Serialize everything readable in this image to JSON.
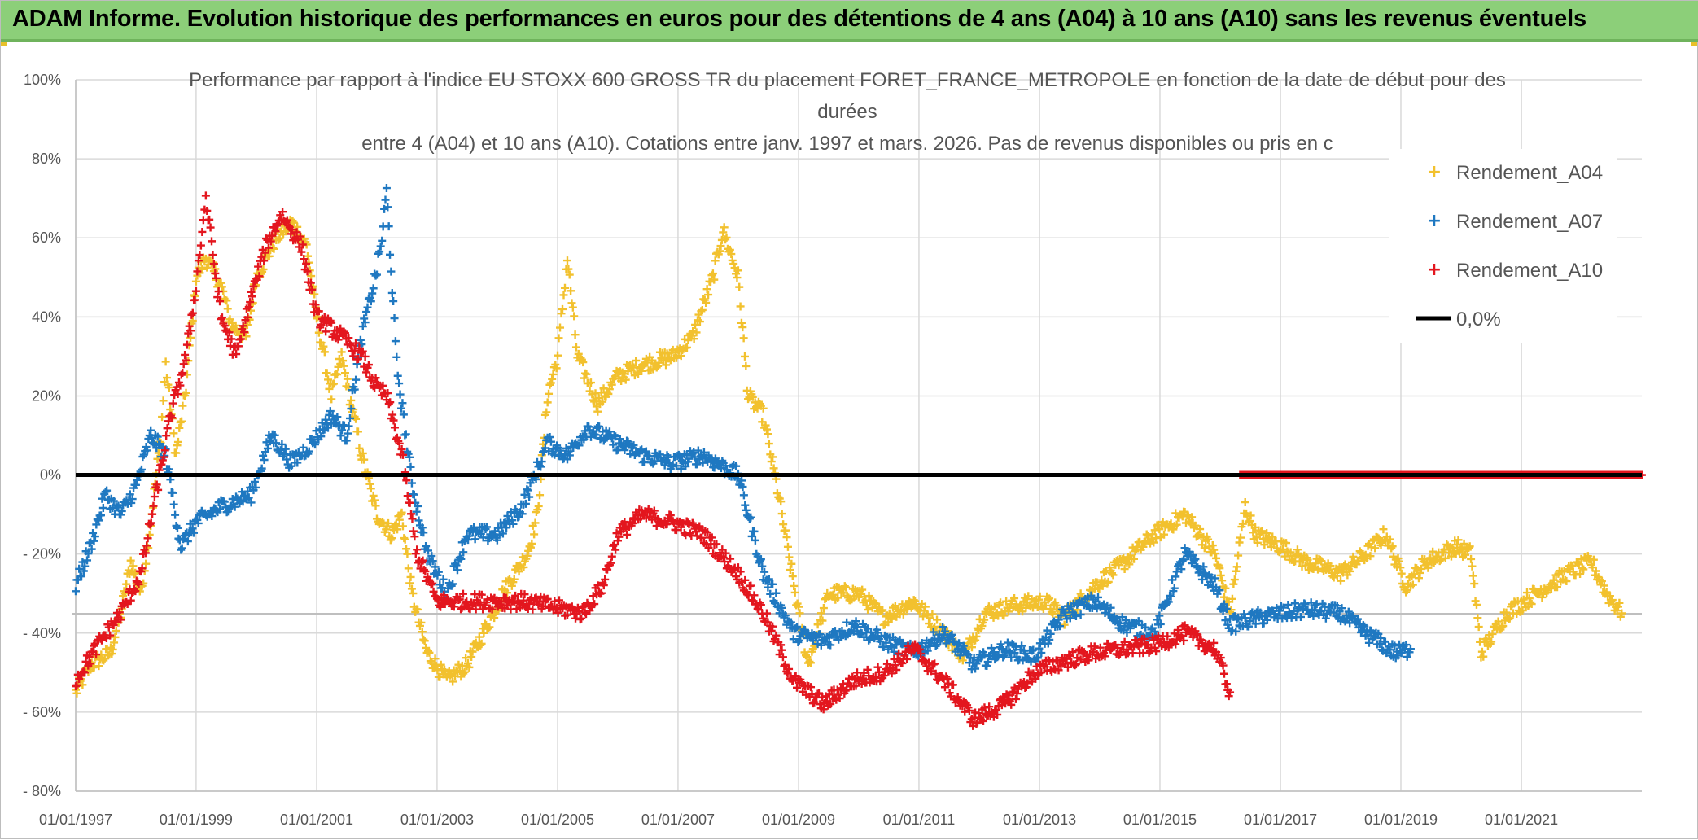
{
  "banner": {
    "title": "ADAM Informe. Evolution historique des performances en euros pour des détentions de 4 ans (A04) à 10 ans (A10) sans les revenus éventuels"
  },
  "colors": {
    "banner_bg": "#8ccf79",
    "A04": "#f2c12e",
    "A07": "#1f78c1",
    "A10": "#e3161e",
    "zero": "#000000",
    "grid": "#d9d9d9"
  },
  "chart_data": {
    "type": "scatter",
    "title_lines": [
      "Performance par rapport à l'indice EU STOXX 600 GROSS TR  du placement FORET_FRANCE_METROPOLE en fonction de la date de début pour des",
      "durées",
      "entre 4 (A04) et 10 ans (A10). Cotations entre janv. 1997 et mars. 2026. Pas de revenus disponibles ou pris en c"
    ],
    "x_axis": {
      "type": "date",
      "range": [
        "1997-01-01",
        "2023-01-01"
      ],
      "tick_labels": [
        "01/01/1997",
        "01/01/1999",
        "01/01/2001",
        "01/01/2003",
        "01/01/2005",
        "01/01/2007",
        "01/01/2009",
        "01/01/2011",
        "01/01/2013",
        "01/01/2015",
        "01/01/2017",
        "01/01/2019",
        "01/01/2021"
      ]
    },
    "y_axis": {
      "range": [
        -80,
        100
      ],
      "unit": "%",
      "tick_labels": [
        "100%",
        "80%",
        "60%",
        "40%",
        "20%",
        "0%",
        "- 20%",
        "- 40%",
        "- 60%",
        "- 80%"
      ]
    },
    "grid": true,
    "legend_position": "top-right",
    "legend": [
      "Rendement_A04",
      "Rendement_A07",
      "Rendement_A10",
      "0,0%"
    ],
    "series": [
      {
        "name": "Rendement_A04",
        "marker": "plus",
        "color": "#f2c12e",
        "points": [
          [
            "1997-01-01",
            -55
          ],
          [
            "1997-04-01",
            -48
          ],
          [
            "1997-08-01",
            -45
          ],
          [
            "1997-10-01",
            -35
          ],
          [
            "1997-12-01",
            -22
          ],
          [
            "1998-02-01",
            -30
          ],
          [
            "1998-04-01",
            -12
          ],
          [
            "1998-06-01",
            10
          ],
          [
            "1998-07-01",
            28
          ],
          [
            "1998-09-01",
            5
          ],
          [
            "1998-11-01",
            22
          ],
          [
            "1999-01-01",
            50
          ],
          [
            "1999-03-01",
            55
          ],
          [
            "1999-06-01",
            48
          ],
          [
            "1999-08-01",
            38
          ],
          [
            "1999-11-01",
            35
          ],
          [
            "2000-01-01",
            50
          ],
          [
            "2000-05-01",
            60
          ],
          [
            "2000-08-01",
            64
          ],
          [
            "2000-11-01",
            58
          ],
          [
            "2001-01-01",
            40
          ],
          [
            "2001-04-01",
            20
          ],
          [
            "2001-06-01",
            30
          ],
          [
            "2001-10-01",
            5
          ],
          [
            "2002-01-01",
            -10
          ],
          [
            "2002-04-01",
            -15
          ],
          [
            "2002-06-01",
            -10
          ],
          [
            "2002-08-01",
            -30
          ],
          [
            "2002-11-01",
            -45
          ],
          [
            "2003-03-01",
            -52
          ],
          [
            "2003-07-01",
            -48
          ],
          [
            "2003-11-01",
            -38
          ],
          [
            "2004-03-01",
            -28
          ],
          [
            "2004-07-01",
            -20
          ],
          [
            "2004-09-01",
            -10
          ],
          [
            "2004-11-01",
            20
          ],
          [
            "2005-01-01",
            30
          ],
          [
            "2005-03-01",
            55
          ],
          [
            "2005-05-01",
            30
          ],
          [
            "2005-09-01",
            18
          ],
          [
            "2006-01-01",
            25
          ],
          [
            "2006-06-01",
            28
          ],
          [
            "2006-12-01",
            30
          ],
          [
            "2007-04-01",
            35
          ],
          [
            "2007-08-01",
            50
          ],
          [
            "2007-10-01",
            62
          ],
          [
            "2008-01-01",
            50
          ],
          [
            "2008-03-01",
            20
          ],
          [
            "2008-06-01",
            15
          ],
          [
            "2008-09-01",
            -5
          ],
          [
            "2009-01-01",
            -35
          ],
          [
            "2009-03-01",
            -48
          ],
          [
            "2009-07-01",
            -30
          ],
          [
            "2010-01-01",
            -30
          ],
          [
            "2010-06-01",
            -36
          ],
          [
            "2010-12-01",
            -32
          ],
          [
            "2011-06-01",
            -40
          ],
          [
            "2011-10-01",
            -46
          ],
          [
            "2012-02-01",
            -35
          ],
          [
            "2012-08-01",
            -33
          ],
          [
            "2013-02-01",
            -32
          ],
          [
            "2013-06-01",
            -36
          ],
          [
            "2013-12-01",
            -28
          ],
          [
            "2014-06-01",
            -22
          ],
          [
            "2014-12-01",
            -15
          ],
          [
            "2015-06-01",
            -10
          ],
          [
            "2015-12-01",
            -20
          ],
          [
            "2016-03-01",
            -35
          ],
          [
            "2016-06-01",
            -8
          ],
          [
            "2016-08-01",
            -15
          ],
          [
            "2017-01-01",
            -18
          ],
          [
            "2017-06-01",
            -22
          ],
          [
            "2018-01-01",
            -25
          ],
          [
            "2018-06-01",
            -20
          ],
          [
            "2018-10-01",
            -15
          ],
          [
            "2019-02-01",
            -28
          ],
          [
            "2019-06-01",
            -22
          ],
          [
            "2019-12-01",
            -18
          ],
          [
            "2020-03-01",
            -20
          ],
          [
            "2020-05-01",
            -45
          ],
          [
            "2020-10-01",
            -35
          ],
          [
            "2021-04-01",
            -30
          ],
          [
            "2021-10-01",
            -25
          ],
          [
            "2022-03-01",
            -22
          ],
          [
            "2022-06-01",
            -30
          ],
          [
            "2022-09-01",
            -35
          ]
        ]
      },
      {
        "name": "Rendement_A07",
        "marker": "plus",
        "color": "#1f78c1",
        "points": [
          [
            "1997-01-01",
            -28
          ],
          [
            "1997-04-01",
            -18
          ],
          [
            "1997-07-01",
            -5
          ],
          [
            "1997-10-01",
            -10
          ],
          [
            "1998-01-01",
            -3
          ],
          [
            "1998-04-01",
            10
          ],
          [
            "1998-07-01",
            5
          ],
          [
            "1998-10-01",
            -18
          ],
          [
            "1999-01-01",
            -12
          ],
          [
            "1999-06-01",
            -8
          ],
          [
            "1999-12-01",
            -5
          ],
          [
            "2000-04-01",
            10
          ],
          [
            "2000-08-01",
            3
          ],
          [
            "2000-12-01",
            8
          ],
          [
            "2001-04-01",
            15
          ],
          [
            "2001-07-01",
            10
          ],
          [
            "2001-10-01",
            35
          ],
          [
            "2002-01-01",
            52
          ],
          [
            "2002-02-01",
            60
          ],
          [
            "2002-03-01",
            72
          ],
          [
            "2002-05-01",
            28
          ],
          [
            "2002-08-01",
            -2
          ],
          [
            "2002-11-01",
            -20
          ],
          [
            "2003-03-01",
            -30
          ],
          [
            "2003-07-01",
            -15
          ],
          [
            "2004-01-01",
            -15
          ],
          [
            "2004-06-01",
            -8
          ],
          [
            "2004-11-01",
            8
          ],
          [
            "2005-03-01",
            5
          ],
          [
            "2005-07-01",
            12
          ],
          [
            "2006-01-01",
            8
          ],
          [
            "2006-06-01",
            5
          ],
          [
            "2006-12-01",
            3
          ],
          [
            "2007-06-01",
            5
          ],
          [
            "2008-01-01",
            0
          ],
          [
            "2008-06-01",
            -25
          ],
          [
            "2008-12-01",
            -40
          ],
          [
            "2009-06-01",
            -42
          ],
          [
            "2009-12-01",
            -38
          ],
          [
            "2010-06-01",
            -42
          ],
          [
            "2010-12-01",
            -45
          ],
          [
            "2011-06-01",
            -40
          ],
          [
            "2011-12-01",
            -48
          ],
          [
            "2012-06-01",
            -44
          ],
          [
            "2012-12-01",
            -46
          ],
          [
            "2013-06-01",
            -35
          ],
          [
            "2013-12-01",
            -32
          ],
          [
            "2014-06-01",
            -38
          ],
          [
            "2014-12-01",
            -40
          ],
          [
            "2015-06-01",
            -20
          ],
          [
            "2015-12-01",
            -28
          ],
          [
            "2016-03-01",
            -38
          ],
          [
            "2016-09-01",
            -36
          ],
          [
            "2017-06-01",
            -34
          ],
          [
            "2018-01-01",
            -35
          ],
          [
            "2018-06-01",
            -40
          ],
          [
            "2018-12-01",
            -45
          ],
          [
            "2019-03-01",
            -44
          ]
        ]
      },
      {
        "name": "Rendement_A10",
        "marker": "plus",
        "color": "#e3161e",
        "points": [
          [
            "1997-01-01",
            -52
          ],
          [
            "1997-06-01",
            -42
          ],
          [
            "1997-10-01",
            -35
          ],
          [
            "1998-02-01",
            -25
          ],
          [
            "1998-05-01",
            -5
          ],
          [
            "1998-08-01",
            15
          ],
          [
            "1998-11-01",
            30
          ],
          [
            "1999-01-01",
            48
          ],
          [
            "1999-03-01",
            70
          ],
          [
            "1999-06-01",
            40
          ],
          [
            "1999-09-01",
            30
          ],
          [
            "1999-12-01",
            45
          ],
          [
            "2000-03-01",
            58
          ],
          [
            "2000-06-01",
            66
          ],
          [
            "2000-10-01",
            58
          ],
          [
            "2001-01-01",
            40
          ],
          [
            "2001-06-01",
            35
          ],
          [
            "2001-10-01",
            30
          ],
          [
            "2002-01-01",
            22
          ],
          [
            "2002-03-01",
            20
          ],
          [
            "2002-06-01",
            5
          ],
          [
            "2002-09-01",
            -20
          ],
          [
            "2003-01-01",
            -32
          ],
          [
            "2003-06-01",
            -32
          ],
          [
            "2003-12-01",
            -32
          ],
          [
            "2004-06-01",
            -32
          ],
          [
            "2004-11-01",
            -33
          ],
          [
            "2005-06-01",
            -35
          ],
          [
            "2005-10-01",
            -28
          ],
          [
            "2006-01-01",
            -15
          ],
          [
            "2006-06-01",
            -10
          ],
          [
            "2006-12-01",
            -12
          ],
          [
            "2007-06-01",
            -15
          ],
          [
            "2008-01-01",
            -25
          ],
          [
            "2008-06-01",
            -35
          ],
          [
            "2008-12-01",
            -52
          ],
          [
            "2009-06-01",
            -58
          ],
          [
            "2009-12-01",
            -52
          ],
          [
            "2010-06-01",
            -50
          ],
          [
            "2010-12-01",
            -44
          ],
          [
            "2011-06-01",
            -52
          ],
          [
            "2011-12-01",
            -62
          ],
          [
            "2012-06-01",
            -58
          ],
          [
            "2012-12-01",
            -50
          ],
          [
            "2013-06-01",
            -47
          ],
          [
            "2013-12-01",
            -45
          ],
          [
            "2014-06-01",
            -44
          ],
          [
            "2014-12-01",
            -43
          ],
          [
            "2015-06-01",
            -40
          ],
          [
            "2015-12-01",
            -44
          ],
          [
            "2016-03-01",
            -55
          ]
        ]
      }
    ],
    "zero_line": {
      "label": "0,0%",
      "value": 0
    },
    "a10_zero_run": {
      "from": "2016-05-01",
      "to": "2023-01-01",
      "value": 0
    }
  }
}
